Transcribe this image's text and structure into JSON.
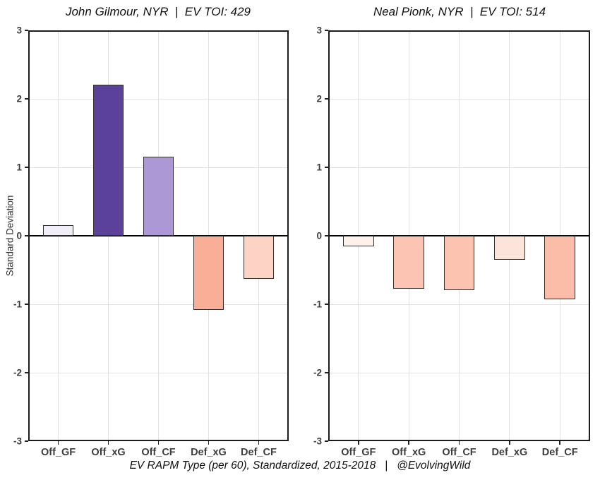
{
  "figure": {
    "caption": "EV RAPM Type (per 60), Standardized, 2015-2018   |   @EvolvingWild",
    "y_axis_label": "Standard Deviation",
    "background": "#ffffff"
  },
  "colors": {
    "grid": "#e2e2e2",
    "panel_border": "#1c1c1c",
    "zero_line": "#000000",
    "bar_border": "#2f2f2f",
    "tick_mark": "#222222",
    "tick_text": "#3d3d3d",
    "title_text": "#111111"
  },
  "chart_data": [
    {
      "type": "bar",
      "title": "John Gilmour, NYR  |  EV TOI: 429",
      "categories": [
        "Off_GF",
        "Off_xG",
        "Off_CF",
        "Def_xG",
        "Def_CF"
      ],
      "values": [
        0.15,
        2.21,
        1.15,
        -1.08,
        -0.63
      ],
      "bar_colors": [
        "#F2EEF8",
        "#5C419B",
        "#AC98D5",
        "#FBAE97",
        "#FCD3C5"
      ],
      "xlabel": "",
      "ylabel": "Standard Deviation",
      "ylim": [
        -3,
        3
      ],
      "yticks": [
        3,
        2,
        1,
        0,
        -1,
        -2,
        -3
      ],
      "grid": true,
      "legend": false
    },
    {
      "type": "bar",
      "title": "Neal Pionk, NYR  |  EV TOI: 514",
      "categories": [
        "Off_GF",
        "Off_xG",
        "Off_CF",
        "Def_xG",
        "Def_CF"
      ],
      "values": [
        -0.15,
        -0.77,
        -0.79,
        -0.35,
        -0.93
      ],
      "bar_colors": [
        "#FDF1EC",
        "#FCC5B3",
        "#FCC3B1",
        "#FCE4DB",
        "#FBBCA8"
      ],
      "xlabel": "",
      "ylabel": "Standard Deviation",
      "ylim": [
        -3,
        3
      ],
      "yticks": [
        3,
        2,
        1,
        0,
        -1,
        -2,
        -3
      ],
      "grid": true,
      "legend": false
    }
  ]
}
